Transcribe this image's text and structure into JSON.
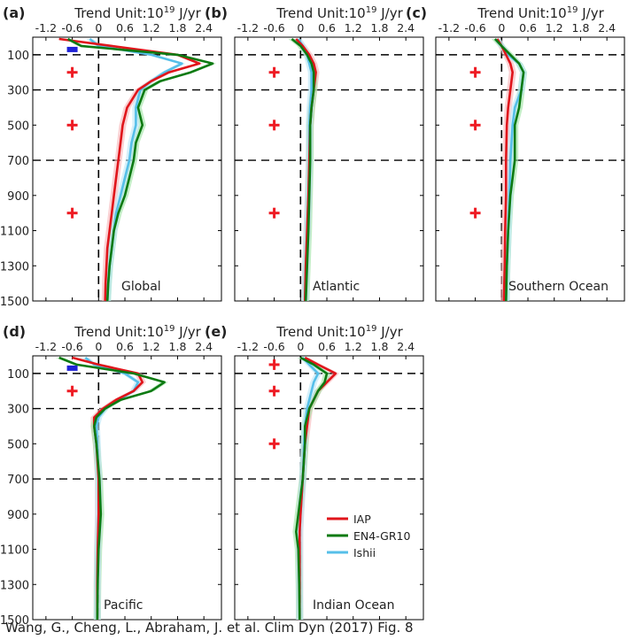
{
  "figure": {
    "credit": "Wang, G., Cheng, L., Abraham, J. et al. Clim Dyn (2017) Fig. 8",
    "axis_title_prefix": "Trend Unit:10",
    "axis_title_exp": "19",
    "axis_title_unit": " J/yr"
  },
  "legend": [
    {
      "name": "IAP",
      "color": "#e0151b"
    },
    {
      "name": "EN4-GR10",
      "color": "#0d7a12"
    },
    {
      "name": "Ishii",
      "color": "#56bfe9"
    }
  ],
  "chart_data": [
    {
      "panel": "(a)",
      "name": "Global",
      "type": "line",
      "xlim": [
        -1.5,
        2.8
      ],
      "ylim": [
        1500,
        0
      ],
      "xticks": [
        -1.2,
        -0.6,
        0,
        0.6,
        1.2,
        1.8,
        2.4
      ],
      "yticks": [
        100,
        300,
        500,
        700,
        900,
        1100,
        1300,
        1500
      ],
      "hlines": [
        100,
        300,
        700
      ],
      "plus_markers": [
        200,
        500,
        1000
      ],
      "blue_marker": 70,
      "series": [
        {
          "name": "IAP",
          "depth": [
            10,
            50,
            100,
            150,
            200,
            250,
            300,
            400,
            500,
            600,
            700,
            800,
            900,
            1000,
            1100,
            1200,
            1300,
            1400,
            1500
          ],
          "values": [
            -0.9,
            0.3,
            1.8,
            2.3,
            1.6,
            1.2,
            0.9,
            0.65,
            0.55,
            0.5,
            0.45,
            0.4,
            0.35,
            0.3,
            0.25,
            0.2,
            0.18,
            0.16,
            0.15
          ]
        },
        {
          "name": "EN4-GR10",
          "depth": [
            10,
            50,
            100,
            150,
            200,
            250,
            300,
            400,
            500,
            600,
            700,
            800,
            900,
            1000,
            1100,
            1200,
            1300,
            1400,
            1500
          ],
          "values": [
            -0.7,
            -0.4,
            1.8,
            2.6,
            2.1,
            1.4,
            1.05,
            0.9,
            1.0,
            0.85,
            0.8,
            0.7,
            0.6,
            0.45,
            0.35,
            0.3,
            0.25,
            0.22,
            0.2
          ]
        },
        {
          "name": "Ishii",
          "depth": [
            10,
            50,
            100,
            150,
            200,
            250,
            300,
            400,
            500,
            600,
            700,
            800,
            900,
            1000,
            1100,
            1200,
            1300,
            1400,
            1500
          ],
          "values": [
            -0.2,
            0.0,
            1.2,
            1.9,
            1.5,
            1.2,
            0.95,
            0.85,
            0.85,
            0.75,
            0.7,
            0.6,
            0.5,
            0.4,
            0.35,
            0.3,
            0.25,
            0.22,
            0.2
          ]
        }
      ]
    },
    {
      "panel": "(b)",
      "name": "Atlantic",
      "type": "line",
      "xlim": [
        -1.5,
        2.8
      ],
      "ylim": [
        1500,
        0
      ],
      "xticks": [
        -1.2,
        -0.6,
        0,
        0.6,
        1.2,
        1.8,
        2.4
      ],
      "yticks": [
        100,
        300,
        500,
        700,
        900,
        1100,
        1300,
        1500
      ],
      "hlines": [
        100,
        300,
        700
      ],
      "plus_markers": [
        200,
        500,
        1000
      ],
      "series": [
        {
          "name": "IAP",
          "depth": [
            10,
            50,
            100,
            150,
            200,
            300,
            400,
            500,
            700,
            900,
            1100,
            1300,
            1500
          ],
          "values": [
            -0.1,
            0.05,
            0.2,
            0.3,
            0.35,
            0.3,
            0.25,
            0.22,
            0.2,
            0.18,
            0.15,
            0.12,
            0.1
          ]
        },
        {
          "name": "EN4-GR10",
          "depth": [
            10,
            50,
            100,
            150,
            200,
            300,
            400,
            500,
            700,
            900,
            1100,
            1300,
            1500
          ],
          "values": [
            -0.2,
            0.0,
            0.15,
            0.25,
            0.3,
            0.3,
            0.25,
            0.22,
            0.22,
            0.2,
            0.18,
            0.15,
            0.12
          ]
        },
        {
          "name": "Ishii",
          "depth": [
            10,
            50,
            100,
            150,
            200,
            300,
            400,
            500,
            700,
            900,
            1100,
            1300,
            1500
          ],
          "values": [
            -0.05,
            0.05,
            0.15,
            0.2,
            0.25,
            0.25,
            0.22,
            0.2,
            0.2,
            0.18,
            0.15,
            0.12,
            0.1
          ]
        }
      ]
    },
    {
      "panel": "(c)",
      "name": "Southern Ocean",
      "type": "line",
      "xlim": [
        -1.5,
        2.8
      ],
      "ylim": [
        1500,
        0
      ],
      "xticks": [
        -1.2,
        -0.6,
        0,
        0.6,
        1.2,
        1.8,
        2.4
      ],
      "yticks": [
        100,
        300,
        500,
        700,
        900,
        1100,
        1300,
        1500
      ],
      "hlines": [
        100,
        300,
        700
      ],
      "plus_markers": [
        200,
        500,
        1000
      ],
      "series": [
        {
          "name": "IAP",
          "depth": [
            10,
            50,
            100,
            150,
            200,
            300,
            400,
            500,
            700,
            900,
            1100,
            1300,
            1500
          ],
          "values": [
            -0.1,
            0.0,
            0.1,
            0.2,
            0.25,
            0.2,
            0.15,
            0.12,
            0.1,
            0.1,
            0.08,
            0.07,
            0.05
          ]
        },
        {
          "name": "EN4-GR10",
          "depth": [
            10,
            50,
            100,
            150,
            200,
            300,
            400,
            500,
            700,
            900,
            1100,
            1300,
            1500
          ],
          "values": [
            -0.15,
            0.0,
            0.2,
            0.4,
            0.5,
            0.45,
            0.4,
            0.3,
            0.3,
            0.2,
            0.15,
            0.12,
            0.1
          ]
        },
        {
          "name": "Ishii",
          "depth": [
            10,
            50,
            100,
            150,
            200,
            300,
            400,
            500,
            700,
            900,
            1100,
            1300,
            1500
          ],
          "values": [
            -0.1,
            0.0,
            0.15,
            0.4,
            0.5,
            0.45,
            0.3,
            0.25,
            0.2,
            0.18,
            0.15,
            0.12,
            0.1
          ]
        }
      ]
    },
    {
      "panel": "(d)",
      "name": "Pacific",
      "type": "line",
      "xlim": [
        -1.5,
        2.8
      ],
      "ylim": [
        1500,
        0
      ],
      "xticks": [
        -1.2,
        -0.6,
        0,
        0.6,
        1.2,
        1.8,
        2.4
      ],
      "yticks": [
        100,
        300,
        500,
        700,
        900,
        1100,
        1300,
        1500
      ],
      "hlines": [
        100,
        300,
        700
      ],
      "plus_markers": [
        200
      ],
      "blue_marker": 70,
      "series": [
        {
          "name": "IAP",
          "depth": [
            10,
            50,
            100,
            150,
            200,
            250,
            300,
            350,
            400,
            500,
            700,
            900,
            1100,
            1300,
            1500
          ],
          "values": [
            -0.6,
            0.0,
            0.9,
            1.0,
            0.8,
            0.4,
            0.1,
            -0.1,
            -0.1,
            -0.05,
            0.0,
            0.0,
            -0.02,
            -0.03,
            -0.03
          ]
        },
        {
          "name": "EN4-GR10",
          "depth": [
            10,
            50,
            100,
            150,
            200,
            250,
            300,
            350,
            400,
            500,
            700,
            900,
            1100,
            1300,
            1500
          ],
          "values": [
            -0.9,
            -0.5,
            0.8,
            1.5,
            1.2,
            0.5,
            0.15,
            -0.05,
            -0.1,
            -0.05,
            0.02,
            0.05,
            0.0,
            -0.02,
            -0.03
          ]
        },
        {
          "name": "Ishii",
          "depth": [
            10,
            50,
            100,
            150,
            200,
            250,
            300,
            350,
            400,
            500,
            700,
            900,
            1100,
            1300,
            1500
          ],
          "values": [
            -0.3,
            -0.1,
            0.6,
            0.9,
            0.8,
            0.45,
            0.15,
            0.0,
            -0.05,
            -0.03,
            0.0,
            0.0,
            -0.02,
            -0.03,
            -0.03
          ]
        }
      ]
    },
    {
      "panel": "(e)",
      "name": "Indian Ocean",
      "type": "line",
      "xlim": [
        -1.5,
        2.8
      ],
      "ylim": [
        1500,
        0
      ],
      "xticks": [
        -1.2,
        -0.6,
        0,
        0.6,
        1.2,
        1.8,
        2.4
      ],
      "yticks": [
        100,
        300,
        500,
        700,
        900,
        1100,
        1300,
        1500
      ],
      "hlines": [
        100,
        300,
        700
      ],
      "plus_markers": [
        50,
        200,
        500
      ],
      "series": [
        {
          "name": "IAP",
          "depth": [
            10,
            50,
            100,
            150,
            200,
            300,
            400,
            500,
            700,
            900,
            1000,
            1100,
            1300,
            1500
          ],
          "values": [
            0.1,
            0.4,
            0.8,
            0.6,
            0.4,
            0.2,
            0.15,
            0.1,
            0.05,
            0.0,
            -0.02,
            -0.02,
            -0.02,
            -0.02
          ]
        },
        {
          "name": "EN4-GR10",
          "depth": [
            10,
            50,
            100,
            150,
            200,
            300,
            400,
            500,
            700,
            900,
            1000,
            1100,
            1300,
            1500
          ],
          "values": [
            0.0,
            0.3,
            0.6,
            0.55,
            0.4,
            0.2,
            0.1,
            0.1,
            0.05,
            -0.05,
            -0.1,
            -0.05,
            -0.03,
            -0.02
          ]
        },
        {
          "name": "Ishii",
          "depth": [
            10,
            50,
            100,
            150,
            200,
            300,
            400,
            500,
            700,
            900,
            1000,
            1100,
            1300,
            1500
          ],
          "values": [
            0.05,
            0.2,
            0.4,
            0.3,
            0.25,
            0.15,
            0.1,
            0.08,
            0.05,
            0.0,
            -0.02,
            -0.02,
            -0.02,
            -0.02
          ]
        }
      ]
    }
  ]
}
